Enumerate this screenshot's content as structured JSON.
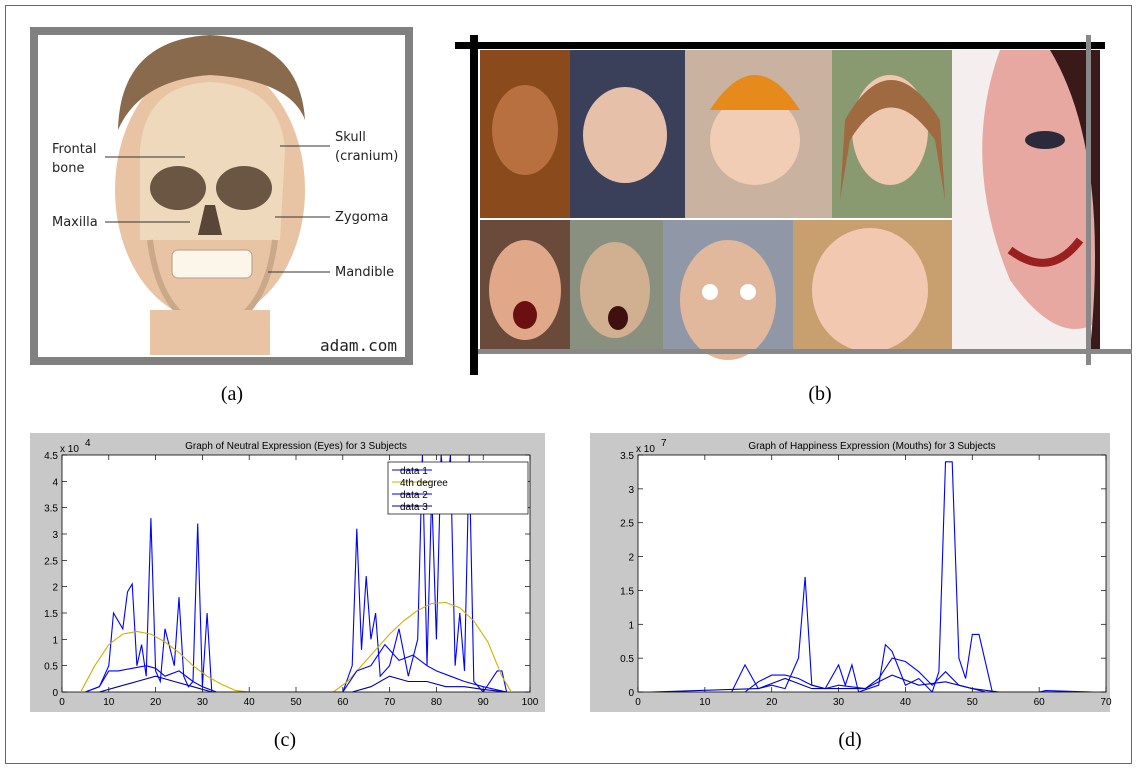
{
  "figure": {
    "panel_labels": [
      "(a)",
      "(b)",
      "(c)",
      "(d)"
    ],
    "skull_labels": {
      "frontal_bone": [
        "Frontal",
        "bone"
      ],
      "skull": [
        "Skull",
        "(cranium)"
      ],
      "maxilla": "Maxilla",
      "zygoma": "Zygoma",
      "mandible": "Mandible"
    },
    "watermark": "adam.com"
  },
  "chart_data": [
    {
      "type": "line",
      "title": "Graph of Neutral Expression (Eyes) for 3 Subjects",
      "y_exponent": {
        "base": "x 10",
        "power": "4"
      },
      "xlim": [
        0,
        100
      ],
      "xticks": [
        0,
        10,
        20,
        30,
        40,
        50,
        60,
        70,
        80,
        90,
        100
      ],
      "ylim": [
        0,
        4.5
      ],
      "yticks": [
        0,
        0.5,
        1,
        1.5,
        2,
        2.5,
        3,
        3.5,
        4,
        4.5
      ],
      "legend": "upper right",
      "series": [
        {
          "name": "data 1",
          "color": "#0000ff",
          "x": [
            5,
            8,
            10,
            11,
            13,
            14,
            15,
            16,
            17,
            18,
            19,
            20,
            21,
            22,
            24,
            25,
            26,
            27,
            28,
            29,
            30,
            31,
            32,
            35,
            50,
            60,
            62,
            63,
            64,
            65,
            66,
            67,
            68,
            70,
            72,
            74,
            76,
            77,
            78,
            79,
            80,
            81,
            82,
            83,
            84,
            85,
            86,
            87,
            88,
            90,
            93,
            94,
            95
          ],
          "values": [
            0,
            0.1,
            0.5,
            1.5,
            1.2,
            1.9,
            2.05,
            0.5,
            0.9,
            0.3,
            3.3,
            0.4,
            0.2,
            1.2,
            0.5,
            1.8,
            0.3,
            0.1,
            0.2,
            3.2,
            0.1,
            1.5,
            0,
            0,
            0,
            0,
            0.5,
            3.1,
            0.8,
            2.2,
            1.0,
            1.5,
            0.3,
            0.5,
            1.2,
            0.3,
            1.0,
            4.5,
            0.5,
            3.8,
            1.0,
            4.5,
            3.6,
            4.5,
            0.5,
            1.5,
            0.4,
            4.5,
            0.2,
            0,
            0.4,
            0.4,
            0
          ]
        },
        {
          "name": "4th degree",
          "color": "#c8b400",
          "x": [
            4,
            7,
            10,
            13,
            16,
            19,
            22,
            25,
            28,
            31,
            34,
            37,
            40,
            58,
            61,
            64,
            67,
            70,
            73,
            76,
            79,
            82,
            85,
            88,
            91,
            94,
            96
          ],
          "values": [
            0,
            0.5,
            0.9,
            1.1,
            1.15,
            1.1,
            0.95,
            0.75,
            0.5,
            0.3,
            0.15,
            0.03,
            0,
            0,
            0.2,
            0.5,
            0.8,
            1.1,
            1.35,
            1.55,
            1.68,
            1.7,
            1.6,
            1.35,
            0.95,
            0.3,
            0
          ]
        },
        {
          "name": "data 2",
          "color": "#0000ff",
          "x": [
            5,
            8,
            10,
            12,
            15,
            18,
            20,
            22,
            25,
            28,
            30,
            33,
            60,
            63,
            66,
            69,
            72,
            75,
            78,
            80,
            83,
            86,
            90,
            95
          ],
          "values": [
            0,
            0.1,
            0.4,
            0.4,
            0.45,
            0.5,
            0.45,
            0.3,
            0.4,
            0.2,
            0.1,
            0,
            0,
            0.4,
            0.5,
            0.9,
            0.6,
            0.7,
            0.5,
            0.4,
            0.3,
            0.2,
            0.1,
            0
          ]
        },
        {
          "name": "data 3",
          "color": "#0000a0",
          "x": [
            8,
            12,
            16,
            20,
            24,
            28,
            32,
            62,
            66,
            70,
            74,
            78,
            82,
            86,
            90,
            95
          ],
          "values": [
            0,
            0.1,
            0.2,
            0.3,
            0.2,
            0.1,
            0,
            0,
            0.1,
            0.3,
            0.2,
            0.2,
            0.1,
            0.1,
            0.05,
            0
          ]
        }
      ]
    },
    {
      "type": "line",
      "title": "Graph of Happiness Expression (Mouths) for 3 Subjects",
      "y_exponent": {
        "base": "x 10",
        "power": "7"
      },
      "xlim": [
        0,
        70
      ],
      "xticks": [
        0,
        10,
        20,
        30,
        40,
        50,
        60,
        70
      ],
      "ylim": [
        0,
        3.5
      ],
      "yticks": [
        0,
        0.5,
        1,
        1.5,
        2,
        2.5,
        3,
        3.5
      ],
      "series": [
        {
          "color": "#0000ff",
          "x": [
            2,
            14,
            16,
            18,
            20,
            22,
            24,
            25,
            26,
            28,
            30,
            31,
            32,
            33,
            36,
            37,
            38,
            40,
            42,
            44,
            45,
            46,
            47,
            48,
            49,
            50,
            51,
            53,
            60,
            61,
            68
          ],
          "values": [
            0,
            0,
            0.4,
            0.05,
            0.1,
            0.05,
            0.5,
            1.7,
            0.1,
            0.05,
            0.4,
            0.1,
            0.4,
            0,
            0.1,
            0.7,
            0.6,
            0.1,
            0.2,
            0,
            0.3,
            3.4,
            3.4,
            0.5,
            0.2,
            0.85,
            0.85,
            0,
            0,
            0.02,
            0
          ]
        },
        {
          "color": "#0000ff",
          "x": [
            2,
            16,
            18,
            20,
            22,
            24,
            26,
            28,
            30,
            34,
            36,
            38,
            40,
            42,
            44,
            46,
            48,
            52,
            68
          ],
          "values": [
            0,
            0,
            0.15,
            0.25,
            0.25,
            0.2,
            0.1,
            0.05,
            0.1,
            0.05,
            0.2,
            0.5,
            0.45,
            0.3,
            0.1,
            0.3,
            0.1,
            0,
            0
          ]
        },
        {
          "color": "#0000c0",
          "x": [
            2,
            18,
            22,
            26,
            30,
            34,
            38,
            42,
            46,
            50,
            54,
            68
          ],
          "values": [
            0,
            0.05,
            0.2,
            0.05,
            0.05,
            0.05,
            0.25,
            0.1,
            0.15,
            0.05,
            0,
            0
          ]
        }
      ]
    }
  ]
}
